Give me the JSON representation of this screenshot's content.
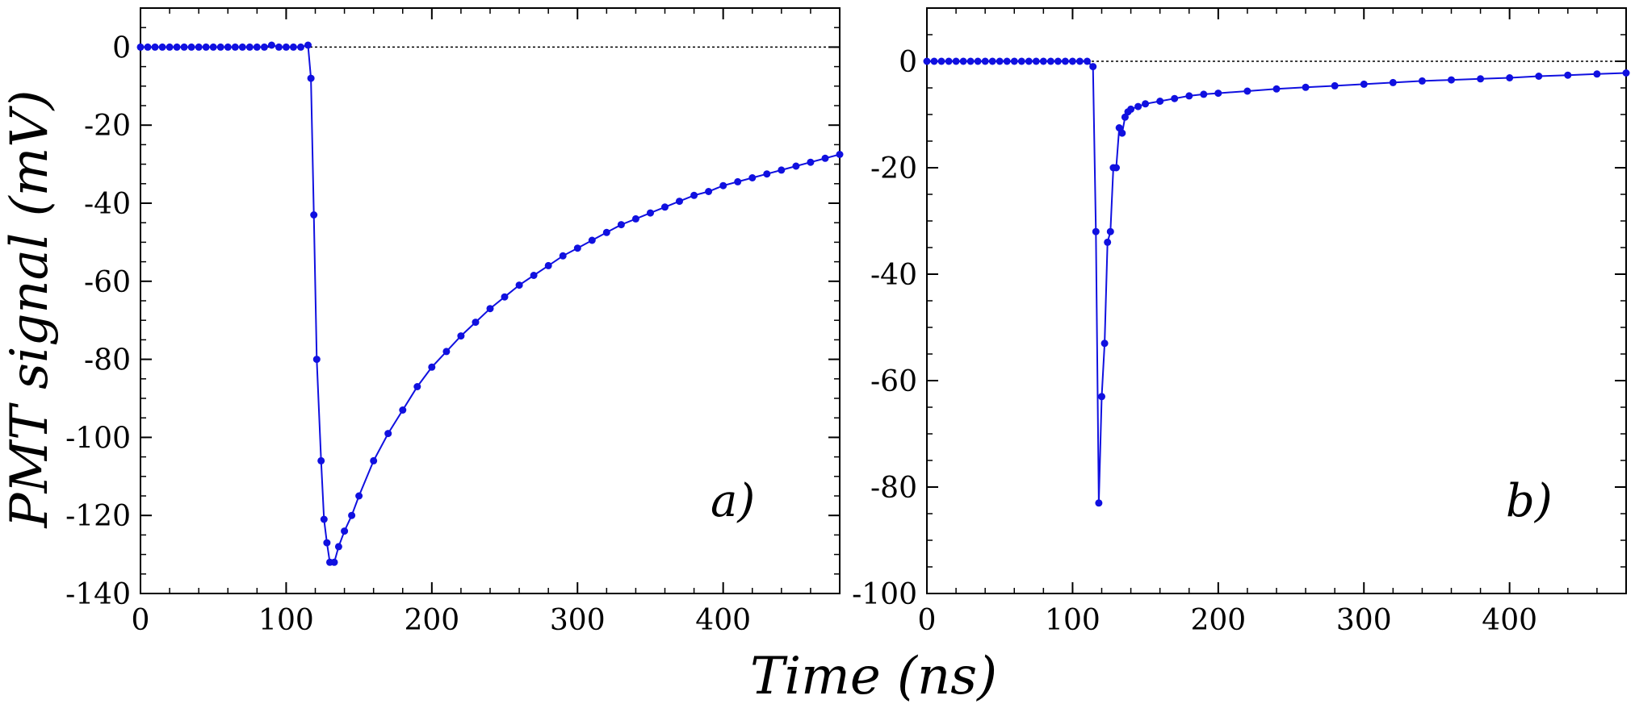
{
  "figure": {
    "ylabel": "PMT signal (mV)",
    "xlabel": "Time (ns)"
  },
  "chart_data": [
    {
      "type": "line",
      "panel_label": "a)",
      "xlabel": "Time (ns)",
      "ylabel": "PMT signal (mV)",
      "xlim": [
        0,
        480
      ],
      "ylim": [
        -140,
        10
      ],
      "x_ticks": [
        0,
        100,
        200,
        300,
        400
      ],
      "y_ticks": [
        0,
        -20,
        -40,
        -60,
        -80,
        -100,
        -120,
        -140
      ],
      "zero_line": true,
      "color": "#1010e0",
      "markers": true,
      "x": [
        0,
        5,
        10,
        15,
        20,
        25,
        30,
        35,
        40,
        45,
        50,
        55,
        60,
        65,
        70,
        75,
        80,
        85,
        90,
        95,
        100,
        105,
        110,
        115,
        117,
        119,
        121,
        124,
        126,
        128,
        130,
        133,
        136,
        140,
        145,
        150,
        160,
        170,
        180,
        190,
        200,
        210,
        220,
        230,
        240,
        250,
        260,
        270,
        280,
        290,
        300,
        310,
        320,
        330,
        340,
        350,
        360,
        370,
        380,
        390,
        400,
        410,
        420,
        430,
        440,
        450,
        460,
        470,
        480
      ],
      "y": [
        0,
        0,
        0,
        0,
        0,
        0,
        0,
        0,
        0,
        0,
        0,
        0,
        0,
        0,
        0,
        0,
        0,
        0,
        0.5,
        0,
        0,
        0,
        0,
        0.5,
        -8,
        -43,
        -80,
        -106,
        -121,
        -127,
        -132,
        -132,
        -128,
        -124,
        -120,
        -115,
        -106,
        -99,
        -93,
        -87,
        -82,
        -78,
        -74,
        -70.5,
        -67,
        -64,
        -61,
        -58.5,
        -56,
        -53.5,
        -51.5,
        -49.5,
        -47.5,
        -45.5,
        -44,
        -42.5,
        -41,
        -39.5,
        -38,
        -37,
        -35.5,
        -34.5,
        -33.5,
        -32.5,
        -31.5,
        -30.5,
        -29.5,
        -28.5,
        -27.5
      ]
    },
    {
      "type": "line",
      "panel_label": "b)",
      "xlabel": "Time (ns)",
      "ylabel": "PMT signal (mV)",
      "xlim": [
        0,
        480
      ],
      "ylim": [
        -100,
        10
      ],
      "x_ticks": [
        0,
        100,
        200,
        300,
        400
      ],
      "y_ticks": [
        0,
        -20,
        -40,
        -60,
        -80,
        -100
      ],
      "zero_line": true,
      "color": "#1010e0",
      "markers": true,
      "x": [
        0,
        5,
        10,
        15,
        20,
        25,
        30,
        35,
        40,
        45,
        50,
        55,
        60,
        65,
        70,
        75,
        80,
        85,
        90,
        95,
        100,
        105,
        110,
        114,
        116,
        118,
        120,
        122,
        124,
        126,
        128,
        130,
        132,
        134,
        136,
        138,
        140,
        145,
        150,
        160,
        170,
        180,
        190,
        200,
        220,
        240,
        260,
        280,
        300,
        320,
        340,
        360,
        380,
        400,
        420,
        440,
        460,
        480
      ],
      "y": [
        0,
        0,
        0,
        0,
        0,
        0,
        0,
        0,
        0,
        0,
        0,
        0,
        0,
        0,
        0,
        0,
        0,
        0,
        0,
        0,
        0,
        0,
        0,
        -1,
        -32,
        -83,
        -63,
        -53,
        -34,
        -32,
        -20,
        -20,
        -12.5,
        -13.5,
        -10.5,
        -9.5,
        -9,
        -8.5,
        -8,
        -7.5,
        -7,
        -6.5,
        -6.2,
        -6,
        -5.6,
        -5.2,
        -4.9,
        -4.6,
        -4.3,
        -4,
        -3.7,
        -3.5,
        -3.3,
        -3.1,
        -2.8,
        -2.6,
        -2.4,
        -2.2
      ]
    }
  ]
}
